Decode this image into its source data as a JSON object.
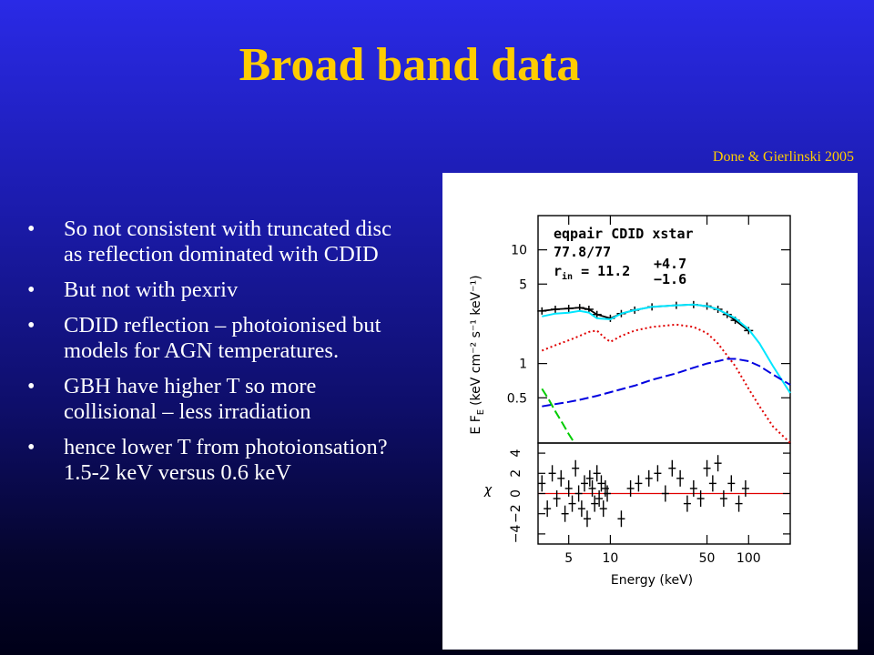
{
  "slide": {
    "title": "Broad band data",
    "citation": "Done & Gierlinski 2005",
    "bullets": [
      "So not consistent with truncated disc as reflection dominated with CDID",
      "But not with pexriv",
      "CDID reflection – photoionised but models for AGN temperatures.",
      "GBH have higher T so more collisional – less irradiation",
      "hence lower T from photoionsation? 1.5-2 keV versus 0.6 keV"
    ]
  },
  "chart_data": [
    {
      "type": "line",
      "panel": "spectrum",
      "xscale": "log",
      "yscale": "log",
      "xlim": [
        3,
        200
      ],
      "ylim": [
        0.2,
        20
      ],
      "ylabel_main": "E F",
      "ylabel_sub": "E",
      "ylabel_units": "(keV cm⁻² s⁻¹ keV⁻¹)",
      "yticks": [
        {
          "value": 10,
          "label": "10"
        },
        {
          "value": 5,
          "label": "5"
        },
        {
          "value": 1,
          "label": "1"
        },
        {
          "value": 0.5,
          "label": "0.5"
        }
      ],
      "annotation": {
        "line1": "eqpair CDID xstar",
        "line2": "77.8/77",
        "rin_label": "r",
        "rin_sub": "in",
        "rin_value": " = 11.2",
        "rin_err_up": "+4.7",
        "rin_err_down": "−1.6"
      },
      "series": [
        {
          "color": "#000000",
          "style": "data",
          "x": [
            3.2,
            4,
            5,
            6,
            7,
            8,
            10,
            12,
            15,
            20,
            30,
            40,
            50,
            60,
            70,
            80,
            100
          ],
          "y": [
            2.9,
            3.0,
            3.05,
            3.1,
            3.0,
            2.7,
            2.5,
            2.75,
            2.95,
            3.15,
            3.25,
            3.3,
            3.2,
            3.0,
            2.7,
            2.4,
            1.95
          ]
        },
        {
          "color": "#00e6ff",
          "style": "solid",
          "x": [
            3.2,
            4,
            5,
            6,
            7,
            8,
            10,
            12,
            15,
            20,
            30,
            40,
            50,
            60,
            80,
            100,
            120,
            150,
            200
          ],
          "y": [
            2.6,
            2.75,
            2.8,
            2.9,
            2.8,
            2.5,
            2.45,
            2.75,
            2.95,
            3.15,
            3.25,
            3.3,
            3.2,
            3.0,
            2.5,
            2.0,
            1.5,
            0.95,
            0.55
          ]
        },
        {
          "color": "#e00000",
          "style": "dotted",
          "x": [
            3.2,
            4,
            5,
            6,
            7,
            8,
            9,
            10,
            12,
            15,
            20,
            30,
            40,
            50,
            60,
            80,
            100,
            120,
            150,
            200
          ],
          "y": [
            1.3,
            1.45,
            1.6,
            1.75,
            1.9,
            1.95,
            1.7,
            1.55,
            1.75,
            1.95,
            2.1,
            2.2,
            2.1,
            1.85,
            1.5,
            0.95,
            0.6,
            0.42,
            0.28,
            0.2
          ]
        },
        {
          "color": "#0000e0",
          "style": "dashed",
          "x": [
            3.2,
            4,
            5,
            6,
            8,
            10,
            15,
            20,
            30,
            40,
            50,
            60,
            70,
            80,
            100,
            120,
            150,
            200
          ],
          "y": [
            0.42,
            0.44,
            0.46,
            0.48,
            0.52,
            0.56,
            0.64,
            0.72,
            0.82,
            0.92,
            1.0,
            1.05,
            1.1,
            1.1,
            1.05,
            0.95,
            0.8,
            0.65
          ]
        },
        {
          "color": "#00cc00",
          "style": "dashed",
          "x": [
            3.2,
            3.6,
            4,
            4.5,
            5,
            5.5
          ],
          "y": [
            0.6,
            0.48,
            0.38,
            0.3,
            0.24,
            0.2
          ]
        }
      ]
    },
    {
      "type": "scatter",
      "panel": "residuals",
      "xscale": "log",
      "xlim": [
        3,
        200
      ],
      "ylim": [
        -5,
        5
      ],
      "xlabel": "Energy (keV)",
      "ylabel": "χ",
      "xticks": [
        {
          "value": 5,
          "label": "5"
        },
        {
          "value": 10,
          "label": "10"
        },
        {
          "value": 50,
          "label": "50"
        },
        {
          "value": 100,
          "label": "100"
        }
      ],
      "yticks": [
        {
          "value": -4,
          "label": "−4"
        },
        {
          "value": -2,
          "label": "−2"
        },
        {
          "value": 0,
          "label": "0"
        },
        {
          "value": 2,
          "label": "2"
        },
        {
          "value": 4,
          "label": "4"
        }
      ],
      "zero_line_color": "#e00000",
      "points": {
        "x": [
          3.2,
          3.5,
          3.8,
          4.1,
          4.4,
          4.7,
          5.0,
          5.3,
          5.6,
          5.9,
          6.2,
          6.5,
          6.8,
          7.1,
          7.4,
          7.7,
          8.0,
          8.3,
          8.6,
          8.9,
          9.2,
          9.5,
          12,
          14,
          16,
          19,
          22,
          25,
          28,
          32,
          36,
          40,
          45,
          50,
          55,
          60,
          66,
          75,
          85,
          95
        ],
        "y": [
          1.0,
          -1.5,
          2.0,
          -0.5,
          1.5,
          -2.0,
          0.5,
          -1.0,
          2.5,
          0.0,
          -1.5,
          1.0,
          -2.5,
          1.5,
          0.5,
          -1.0,
          2.0,
          -0.5,
          1.0,
          -1.5,
          0.5,
          0.0,
          -2.5,
          0.5,
          1.0,
          1.5,
          2.0,
          0.0,
          2.5,
          1.5,
          -1.0,
          0.5,
          -0.5,
          2.5,
          1.0,
          3.0,
          -0.5,
          1.0,
          -1.0,
          0.5
        ]
      }
    }
  ]
}
